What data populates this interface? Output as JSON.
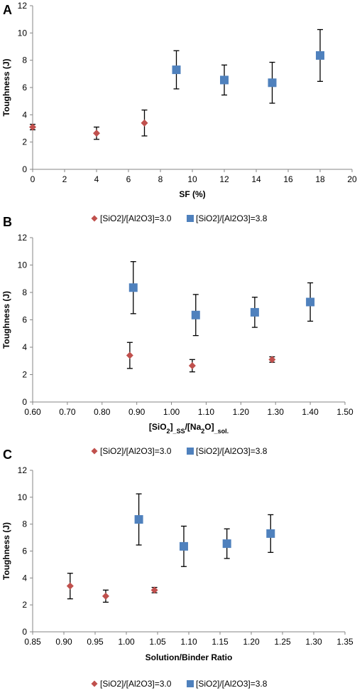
{
  "colors": {
    "red": "#c0504d",
    "blue": "#4f81bd",
    "axis": "#868686",
    "errbar": "#000000"
  },
  "chart_data": [
    {
      "type": "scatter",
      "panel_label": "A",
      "xlabel": "SF (%)",
      "ylabel": "Toughness (J)",
      "xlim": [
        0,
        20
      ],
      "ylim": [
        0,
        12
      ],
      "xticks": [
        "0",
        "2",
        "4",
        "6",
        "8",
        "10",
        "12",
        "14",
        "16",
        "18",
        "20"
      ],
      "yticks": [
        "0",
        "2",
        "4",
        "6",
        "8",
        "10",
        "12"
      ],
      "grid": false,
      "legend": null,
      "series": [
        {
          "marker": "diamond",
          "color": "#c0504d",
          "points": [
            {
              "x": 0,
              "y": 3.1,
              "err": 0.2
            },
            {
              "x": 4,
              "y": 2.65,
              "err": 0.45
            },
            {
              "x": 7,
              "y": 3.4,
              "err": 0.95
            }
          ]
        },
        {
          "marker": "square",
          "color": "#4f81bd",
          "points": [
            {
              "x": 9,
              "y": 7.3,
              "err": 1.4
            },
            {
              "x": 12,
              "y": 6.55,
              "err": 1.1
            },
            {
              "x": 15,
              "y": 6.35,
              "err": 1.5
            },
            {
              "x": 18,
              "y": 8.35,
              "err": 1.9
            }
          ]
        }
      ]
    },
    {
      "type": "scatter",
      "panel_label": "B",
      "xlabel_parts": [
        "[SiO",
        "2",
        "]",
        "_SS",
        "/[Na",
        "2",
        "O]",
        "_sol."
      ],
      "ylabel": "Toughness (J)",
      "xlim": [
        0.6,
        1.5
      ],
      "ylim": [
        0,
        12
      ],
      "xticks": [
        "0.60",
        "0.70",
        "0.80",
        "0.90",
        "1.00",
        "1.10",
        "1.20",
        "1.30",
        "1.40",
        "1.50"
      ],
      "yticks": [
        "0",
        "2",
        "4",
        "6",
        "8",
        "10",
        "12"
      ],
      "grid": false,
      "legend": {
        "position": "top",
        "entries": [
          "[SiO2]/[Al2O3]=3.0",
          "[SiO2]/[Al2O3]=3.8"
        ]
      },
      "series": [
        {
          "name": "[SiO2]/[Al2O3]=3.0",
          "marker": "diamond",
          "color": "#c0504d",
          "points": [
            {
              "x": 0.88,
              "y": 3.4,
              "err": 0.95
            },
            {
              "x": 1.06,
              "y": 2.65,
              "err": 0.45
            },
            {
              "x": 1.29,
              "y": 3.1,
              "err": 0.2
            }
          ]
        },
        {
          "name": "[SiO2]/[Al2O3]=3.8",
          "marker": "square",
          "color": "#4f81bd",
          "points": [
            {
              "x": 0.89,
              "y": 8.35,
              "err": 1.9
            },
            {
              "x": 1.07,
              "y": 6.35,
              "err": 1.5
            },
            {
              "x": 1.24,
              "y": 6.55,
              "err": 1.1
            },
            {
              "x": 1.4,
              "y": 7.3,
              "err": 1.4
            }
          ]
        }
      ]
    },
    {
      "type": "scatter",
      "panel_label": "C",
      "xlabel": "Solution/Binder Ratio",
      "ylabel": "Toughness (J)",
      "xlim": [
        0.85,
        1.35
      ],
      "ylim": [
        0,
        12
      ],
      "xticks": [
        "0.85",
        "0.90",
        "0.95",
        "1.00",
        "1.05",
        "1.10",
        "1.15",
        "1.20",
        "1.25",
        "1.30",
        "1.35"
      ],
      "yticks": [
        "0",
        "2",
        "4",
        "6",
        "8",
        "10",
        "12"
      ],
      "grid": false,
      "legend": {
        "position": "top",
        "entries": [
          "[SiO2]/[Al2O3]=3.0",
          "[SiO2]/[Al2O3]=3.8"
        ]
      },
      "legend_bottom": {
        "position": "bottom",
        "entries": [
          "[SiO2]/[Al2O3]=3.0",
          "[SiO2]/[Al2O3]=3.8"
        ]
      },
      "series": [
        {
          "name": "[SiO2]/[Al2O3]=3.0",
          "marker": "diamond",
          "color": "#c0504d",
          "points": [
            {
              "x": 0.91,
              "y": 3.4,
              "err": 0.95
            },
            {
              "x": 0.967,
              "y": 2.65,
              "err": 0.45
            },
            {
              "x": 1.045,
              "y": 3.1,
              "err": 0.2
            }
          ]
        },
        {
          "name": "[SiO2]/[Al2O3]=3.8",
          "marker": "square",
          "color": "#4f81bd",
          "points": [
            {
              "x": 1.02,
              "y": 8.35,
              "err": 1.9
            },
            {
              "x": 1.092,
              "y": 6.35,
              "err": 1.5
            },
            {
              "x": 1.161,
              "y": 6.55,
              "err": 1.1
            },
            {
              "x": 1.231,
              "y": 7.3,
              "err": 1.4
            }
          ]
        }
      ]
    }
  ]
}
